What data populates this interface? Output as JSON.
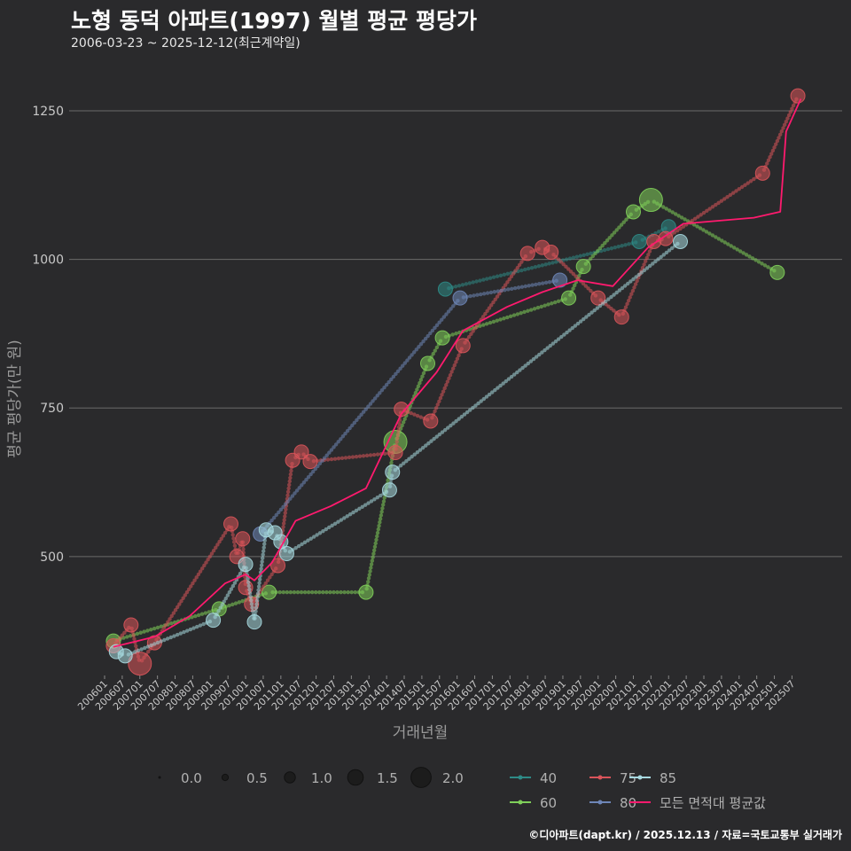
{
  "header": {
    "title": "노형 동덕 아파트(1997) 월별 평균 평당가",
    "subtitle": "2006-03-23 ~ 2025-12-12(최근계약일)"
  },
  "caption": "©디아파트(dapt.kr) / 2025.12.13 / 자료=국토교통부 실거래가",
  "colors": {
    "background": "#2a2a2c",
    "grid": "#6a6a6a",
    "s40": "#2e8b87",
    "s60": "#7fcf5a",
    "s75": "#d9545a",
    "s80": "#6e86b8",
    "s85": "#a6d8df",
    "avg": "#ff1a6e"
  },
  "chart_data": {
    "type": "scatter",
    "xlabel": "거래년월",
    "ylabel": "평균 평당가(만 원)",
    "ylim": [
      300,
      1320
    ],
    "yticks": [
      500,
      750,
      1000,
      1250
    ],
    "x_range": [
      "2006-01",
      "2025-12"
    ],
    "x_tick_labels": [
      "200601",
      "200607",
      "200701",
      "200707",
      "200801",
      "200807",
      "200901",
      "200907",
      "201001",
      "201007",
      "201101",
      "201107",
      "201201",
      "201207",
      "201301",
      "201307",
      "201401",
      "201407",
      "201501",
      "201507",
      "201601",
      "201607",
      "201701",
      "201707",
      "201801",
      "201807",
      "201901",
      "201907",
      "202001",
      "202007",
      "202101",
      "202107",
      "202201",
      "202207",
      "202301",
      "202307",
      "202401",
      "202407",
      "202501",
      "202507"
    ],
    "size_legend": {
      "title": "",
      "values": [
        "0.0",
        "0.5",
        "1.0",
        "1.5",
        "2.0"
      ]
    },
    "color_legend": [
      {
        "key": "s40",
        "label": "40"
      },
      {
        "key": "s75",
        "label": "75"
      },
      {
        "key": "s85",
        "label": "85"
      },
      {
        "key": "s60",
        "label": "60"
      },
      {
        "key": "s80",
        "label": "80"
      },
      {
        "key": "avg",
        "label": "모든 면적대 평균값"
      }
    ],
    "series": [
      {
        "name": "40",
        "key": "s40",
        "points": [
          {
            "x": "2015-09",
            "y": 950,
            "s": 1.0
          },
          {
            "x": "2021-03",
            "y": 1030,
            "s": 1.0
          },
          {
            "x": "2022-01",
            "y": 1055,
            "s": 1.0
          }
        ]
      },
      {
        "name": "60",
        "key": "s60",
        "points": [
          {
            "x": "2006-04",
            "y": 358,
            "s": 1.0
          },
          {
            "x": "2009-04",
            "y": 412,
            "s": 1.0
          },
          {
            "x": "2010-09",
            "y": 440,
            "s": 1.0
          },
          {
            "x": "2013-06",
            "y": 440,
            "s": 1.0
          },
          {
            "x": "2014-04",
            "y": 693,
            "s": 2.0
          },
          {
            "x": "2015-03",
            "y": 825,
            "s": 1.0
          },
          {
            "x": "2015-08",
            "y": 868,
            "s": 1.0
          },
          {
            "x": "2019-03",
            "y": 935,
            "s": 1.0
          },
          {
            "x": "2019-08",
            "y": 988,
            "s": 1.0
          },
          {
            "x": "2021-01",
            "y": 1080,
            "s": 1.0
          },
          {
            "x": "2021-07",
            "y": 1100,
            "s": 2.0
          },
          {
            "x": "2025-02",
            "y": 978,
            "s": 1.0
          }
        ]
      },
      {
        "name": "75",
        "key": "s75",
        "points": [
          {
            "x": "2006-04",
            "y": 350,
            "s": 1.0
          },
          {
            "x": "2006-10",
            "y": 385,
            "s": 1.0
          },
          {
            "x": "2007-01",
            "y": 320,
            "s": 2.0
          },
          {
            "x": "2007-06",
            "y": 355,
            "s": 1.0
          },
          {
            "x": "2009-08",
            "y": 555,
            "s": 1.0
          },
          {
            "x": "2009-10",
            "y": 500,
            "s": 1.0
          },
          {
            "x": "2009-12",
            "y": 530,
            "s": 1.0
          },
          {
            "x": "2010-01",
            "y": 448,
            "s": 1.0
          },
          {
            "x": "2010-03",
            "y": 420,
            "s": 1.0
          },
          {
            "x": "2010-12",
            "y": 485,
            "s": 1.0
          },
          {
            "x": "2011-05",
            "y": 662,
            "s": 1.0
          },
          {
            "x": "2011-08",
            "y": 676,
            "s": 1.0
          },
          {
            "x": "2011-11",
            "y": 660,
            "s": 1.0
          },
          {
            "x": "2014-04",
            "y": 675,
            "s": 1.0
          },
          {
            "x": "2014-06",
            "y": 748,
            "s": 1.0
          },
          {
            "x": "2015-04",
            "y": 728,
            "s": 1.0
          },
          {
            "x": "2016-03",
            "y": 855,
            "s": 1.0
          },
          {
            "x": "2018-01",
            "y": 1010,
            "s": 1.0
          },
          {
            "x": "2018-06",
            "y": 1020,
            "s": 1.0
          },
          {
            "x": "2018-09",
            "y": 1012,
            "s": 1.0
          },
          {
            "x": "2020-01",
            "y": 935,
            "s": 1.0
          },
          {
            "x": "2020-09",
            "y": 903,
            "s": 1.0
          },
          {
            "x": "2021-08",
            "y": 1030,
            "s": 1.0
          },
          {
            "x": "2021-12",
            "y": 1035,
            "s": 1.0
          },
          {
            "x": "2024-09",
            "y": 1145,
            "s": 1.0
          },
          {
            "x": "2025-09",
            "y": 1275,
            "s": 1.0
          }
        ]
      },
      {
        "name": "80",
        "key": "s80",
        "points": [
          {
            "x": "2010-06",
            "y": 538,
            "s": 1.0
          },
          {
            "x": "2016-02",
            "y": 935,
            "s": 1.0
          },
          {
            "x": "2018-12",
            "y": 965,
            "s": 1.0
          }
        ]
      },
      {
        "name": "85",
        "key": "s85",
        "points": [
          {
            "x": "2006-05",
            "y": 340,
            "s": 1.0
          },
          {
            "x": "2006-08",
            "y": 333,
            "s": 1.0
          },
          {
            "x": "2009-02",
            "y": 393,
            "s": 1.0
          },
          {
            "x": "2010-01",
            "y": 487,
            "s": 1.0
          },
          {
            "x": "2010-04",
            "y": 390,
            "s": 1.0
          },
          {
            "x": "2010-08",
            "y": 545,
            "s": 1.0
          },
          {
            "x": "2010-11",
            "y": 540,
            "s": 1.0
          },
          {
            "x": "2011-01",
            "y": 525,
            "s": 1.0
          },
          {
            "x": "2011-03",
            "y": 505,
            "s": 1.0
          },
          {
            "x": "2014-02",
            "y": 612,
            "s": 1.0
          },
          {
            "x": "2014-03",
            "y": 642,
            "s": 1.0
          },
          {
            "x": "2022-05",
            "y": 1030,
            "s": 1.0
          }
        ]
      }
    ],
    "average_series": {
      "name": "모든 면적대 평균값",
      "key": "avg",
      "points": [
        {
          "x": "2006-04",
          "y": 348
        },
        {
          "x": "2007-06",
          "y": 365
        },
        {
          "x": "2008-06",
          "y": 400
        },
        {
          "x": "2009-06",
          "y": 455
        },
        {
          "x": "2010-01",
          "y": 470
        },
        {
          "x": "2010-04",
          "y": 460
        },
        {
          "x": "2010-10",
          "y": 490
        },
        {
          "x": "2011-06",
          "y": 560
        },
        {
          "x": "2012-06",
          "y": 585
        },
        {
          "x": "2013-06",
          "y": 615
        },
        {
          "x": "2014-06",
          "y": 740
        },
        {
          "x": "2015-06",
          "y": 810
        },
        {
          "x": "2016-03",
          "y": 880
        },
        {
          "x": "2017-06",
          "y": 920
        },
        {
          "x": "2018-06",
          "y": 945
        },
        {
          "x": "2019-06",
          "y": 965
        },
        {
          "x": "2020-06",
          "y": 955
        },
        {
          "x": "2021-06",
          "y": 1020
        },
        {
          "x": "2022-06",
          "y": 1060
        },
        {
          "x": "2023-06",
          "y": 1065
        },
        {
          "x": "2024-06",
          "y": 1070
        },
        {
          "x": "2025-03",
          "y": 1080
        },
        {
          "x": "2025-05",
          "y": 1215
        },
        {
          "x": "2025-10",
          "y": 1270
        }
      ]
    }
  }
}
